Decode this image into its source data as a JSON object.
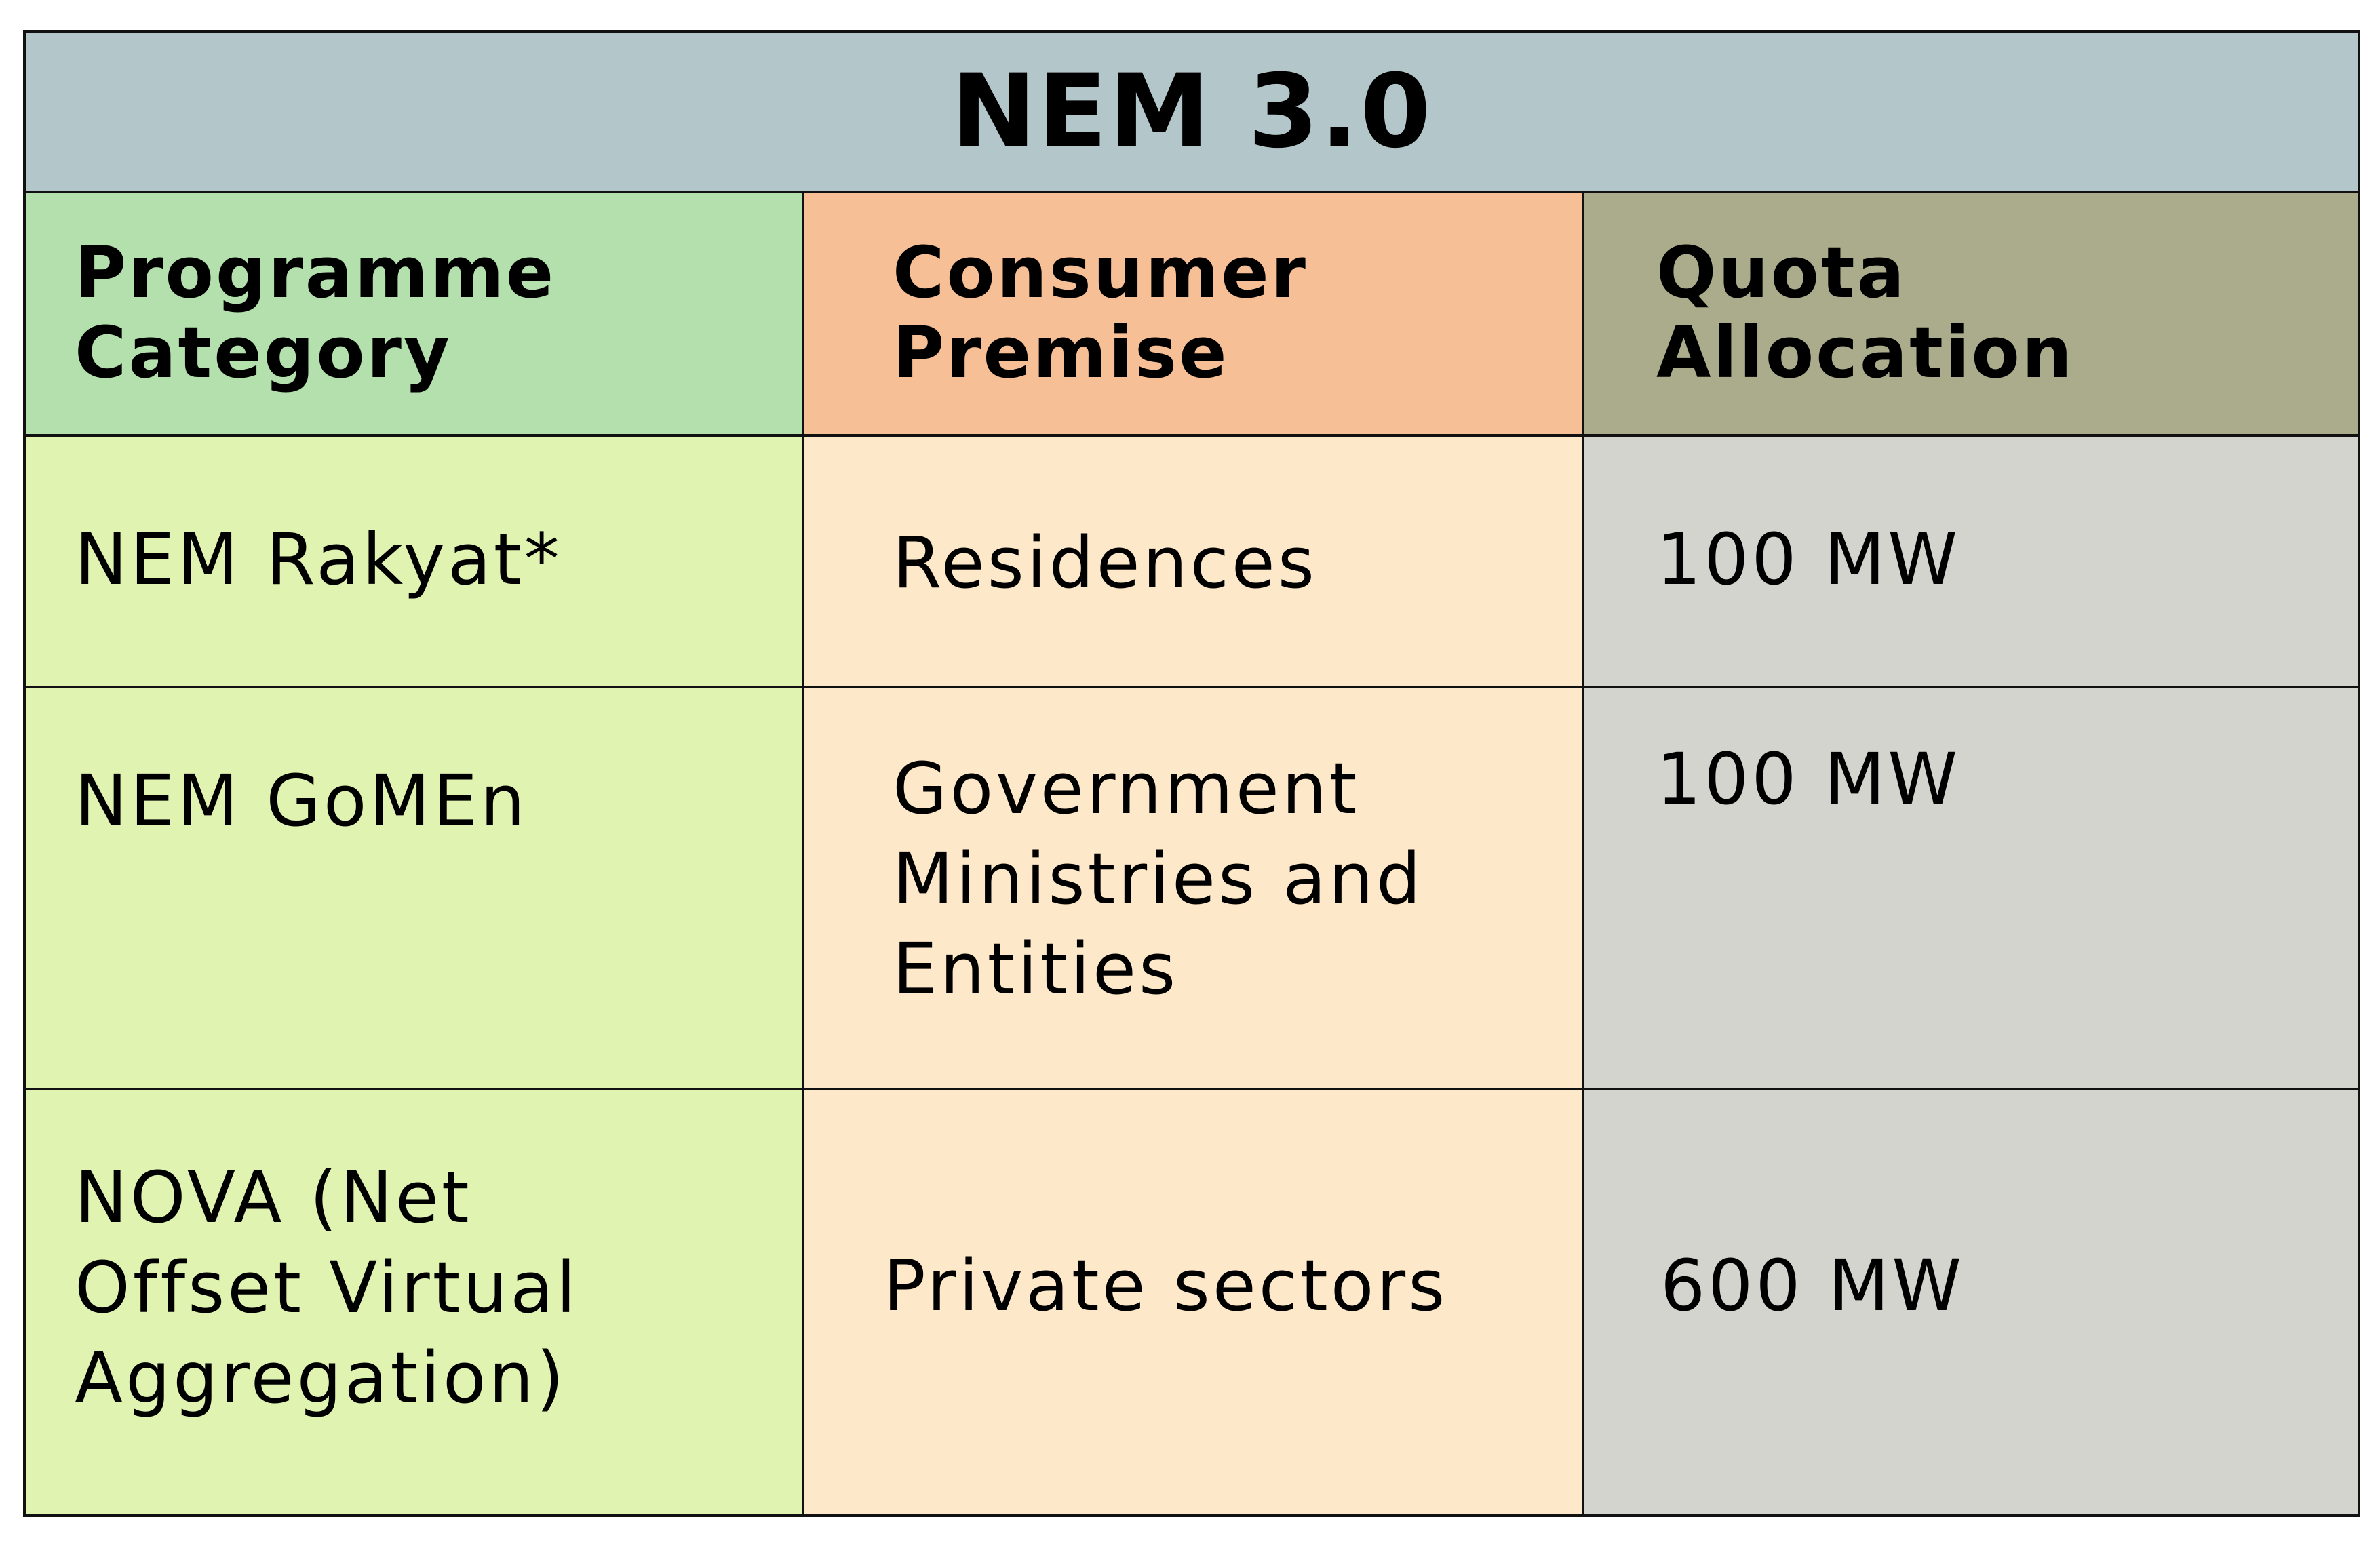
{
  "table": {
    "title": "NEM 3.0",
    "colors": {
      "title_bg": "#b3c6c9",
      "col1_header_bg": "#b4e0ae",
      "col2_header_bg": "#f7bf96",
      "col3_header_bg": "#aaac8b",
      "col1_body_bg": "#e1f3b1",
      "col2_body_bg": "#fde9c9",
      "col3_body_bg": "#d4d4ce",
      "border": "#111111"
    },
    "headers": [
      {
        "line1": "Programme",
        "line2": "Category"
      },
      {
        "line1": "Consumer",
        "line2": "Premise"
      },
      {
        "line1": "Quota",
        "line2": "Allocation"
      }
    ],
    "rows": [
      {
        "category": [
          "NEM Rakyat*"
        ],
        "premise": [
          "Residences"
        ],
        "quota": "100 MW"
      },
      {
        "category": [
          "NEM GoMEn"
        ],
        "premise": [
          "Government",
          "Ministries and",
          "Entities"
        ],
        "quota": "100 MW"
      },
      {
        "category": [
          "NOVA (Net",
          "Offset Virtual",
          "Aggregation)"
        ],
        "premise": [
          "Private sectors"
        ],
        "quota": "600 MW"
      }
    ]
  }
}
